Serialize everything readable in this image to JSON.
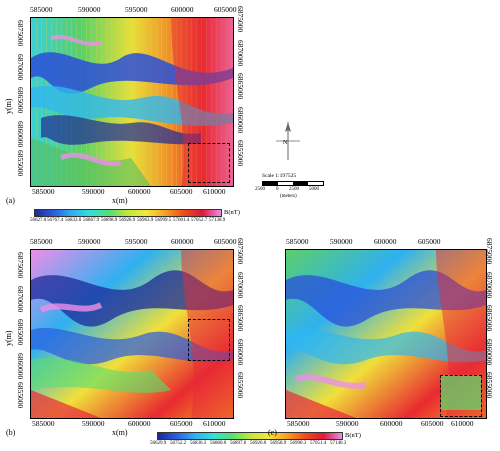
{
  "figure": {
    "panels": [
      {
        "id": "a",
        "label": "(a)",
        "x_ticks": [
          "585000",
          "590000",
          "595000",
          "600000",
          "605000",
          "610000"
        ],
        "y_ticks_left": [
          "6875000",
          "6870000",
          "6865000",
          "6860000",
          "6855000",
          "6850000"
        ],
        "y_ticks_right": [
          "6875000",
          "6870000",
          "6865000",
          "6860000",
          "6855000",
          "6850000"
        ],
        "xlabel": "x(m)",
        "ylabel": "y(m)"
      },
      {
        "id": "b",
        "label": "(b)",
        "x_ticks": [
          "585000",
          "590000",
          "595000",
          "600000",
          "605000",
          "610000"
        ],
        "y_ticks_left": [
          "6875000",
          "6870000",
          "6865000",
          "6860000",
          "6855000",
          "6850000"
        ],
        "y_ticks_right": [
          "6875000",
          "6870000",
          "6865000",
          "6860000",
          "6855000",
          "6850000"
        ],
        "xlabel": "x(m)",
        "ylabel": "y(m)"
      },
      {
        "id": "c",
        "label": "(c)",
        "x_ticks": [
          "585000",
          "590000",
          "595000",
          "600000",
          "605000",
          "610000"
        ],
        "y_ticks_left": [],
        "y_ticks_right": [
          "6875000",
          "6870000",
          "6865000",
          "6860000",
          "6855000",
          "6850000"
        ],
        "xlabel": "x(m)",
        "ylabel": ""
      }
    ],
    "colorbar_top": {
      "values": [
        "56627.0",
        "56767.4",
        "56832.0",
        "56867.9",
        "56898.9",
        "56928.9",
        "56963.9",
        "56999.5",
        "57001.4",
        "57052.7",
        "57138.9"
      ],
      "unit": "B(nT)",
      "colors": [
        "#1c2a9a",
        "#2a5de0",
        "#2fb0f0",
        "#33e0d8",
        "#55e070",
        "#bfe83a",
        "#f5e63a",
        "#f7a021",
        "#ef4b1e",
        "#e0183a",
        "#ee8ee8"
      ]
    },
    "colorbar_bottom": {
      "values": [
        "56629.9",
        "56752.2",
        "56836.3",
        "56860.0",
        "56897.0",
        "56926.0",
        "56958.9",
        "56990.3",
        "57051.4",
        "57140.3"
      ],
      "unit": "B(nT)",
      "colors": [
        "#1c2a9a",
        "#2a5de0",
        "#2fb0f0",
        "#33e0d8",
        "#55e070",
        "#bfe83a",
        "#f5e63a",
        "#f7a021",
        "#ef4b1e",
        "#e0183a",
        "#ee8ee8"
      ]
    },
    "scale": {
      "title": "Scale 1:197525",
      "ticks": [
        "2500",
        "0",
        "2500",
        "5000"
      ],
      "unit": "(meters)",
      "north": "N"
    }
  }
}
